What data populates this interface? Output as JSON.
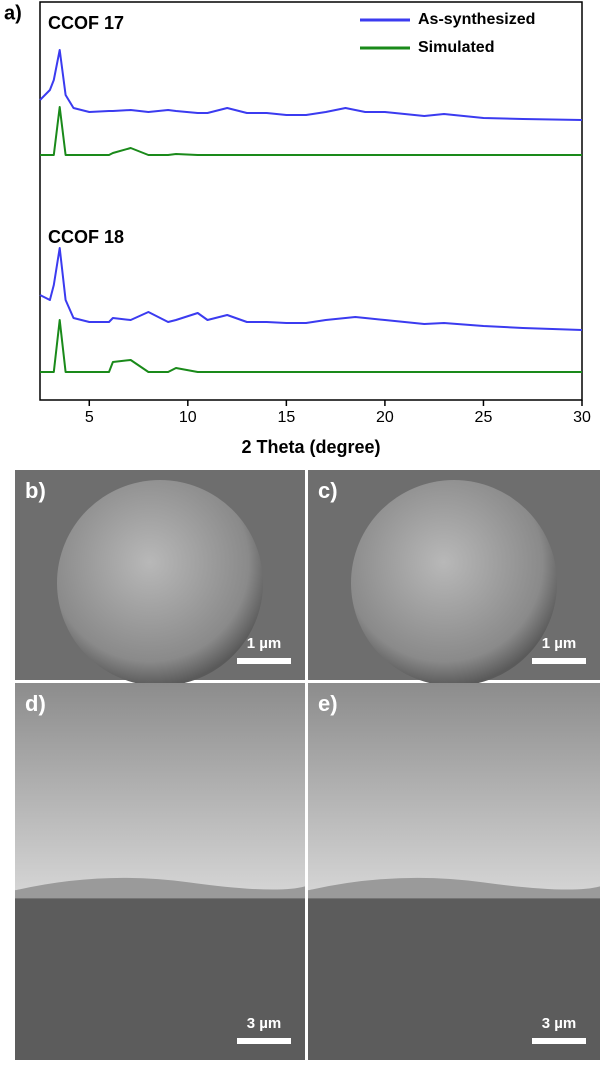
{
  "chart_data": {
    "type": "line",
    "panel_label": "a)",
    "xlabel": "2 Theta (degree)",
    "xlim": [
      2.5,
      30
    ],
    "xticks": [
      5,
      10,
      15,
      20,
      25,
      30
    ],
    "series": [
      {
        "name": "As-synthesized",
        "color": "#3b3bf0"
      },
      {
        "name": "Simulated",
        "color": "#1a8a1a"
      }
    ],
    "x": [
      2.5,
      3,
      3.2,
      3.5,
      3.8,
      4.2,
      5,
      6,
      6.2,
      7.1,
      8,
      9,
      9.4,
      10.5,
      11,
      12,
      13,
      14,
      15,
      16,
      17,
      18,
      18.5,
      19,
      20,
      22,
      23,
      25,
      27,
      30
    ],
    "patterns": [
      {
        "label": "CCOF 17",
        "lines": [
          {
            "values": [
              25,
              35,
              45,
              75,
              30,
              17,
              13,
              14,
              14,
              15,
              13,
              15,
              14,
              12,
              12,
              17,
              12,
              12,
              10,
              10,
              13,
              17,
              15,
              13,
              13,
              9,
              11,
              7,
              6,
              5
            ]
          },
          {
            "values": [
              0,
              0,
              0,
              48,
              0,
              0,
              0,
              0,
              2,
              7,
              0,
              0,
              1,
              0,
              0,
              0,
              0,
              0,
              0,
              0,
              0,
              0,
              0,
              0,
              0,
              0,
              0,
              0,
              0,
              0
            ]
          }
        ]
      },
      {
        "label": "CCOF 18",
        "lines": [
          {
            "values": [
              37,
              32,
              47,
              84,
              32,
              14,
              10,
              10,
              14,
              12,
              20,
              10,
              12,
              19,
              12,
              17,
              10,
              10,
              9,
              9,
              12,
              14,
              15,
              14,
              12,
              8,
              9,
              6,
              4,
              2
            ]
          },
          {
            "values": [
              0,
              0,
              0,
              52,
              0,
              0,
              0,
              0,
              10,
              12,
              0,
              0,
              4,
              0,
              0,
              0,
              0,
              0,
              0,
              0,
              0,
              0,
              0,
              0,
              0,
              0,
              0,
              0,
              0,
              0
            ]
          }
        ]
      }
    ]
  },
  "images": [
    {
      "label": "b)",
      "scale_bar": "1 µm"
    },
    {
      "label": "c)",
      "scale_bar": "1 µm"
    },
    {
      "label": "d)",
      "scale_bar": "3 µm"
    },
    {
      "label": "e)",
      "scale_bar": "3 µm"
    }
  ]
}
